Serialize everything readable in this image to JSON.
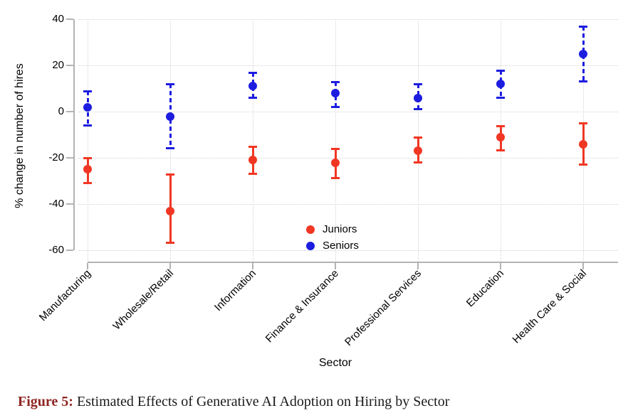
{
  "chart_data": {
    "type": "scatter",
    "title": "",
    "xlabel": "Sector",
    "ylabel": "% change in number of hires",
    "ylim": [
      -60,
      40
    ],
    "yticks": [
      40,
      20,
      0,
      -20,
      -40,
      -60
    ],
    "grid": "dotted, horizontal and vertical",
    "legend_position": "inside bottom-center",
    "categories": [
      "Manufacturing",
      "Wholesale/Retail",
      "Information",
      "Finance & Insurance",
      "Professional Services",
      "Education",
      "Health Care & Social"
    ],
    "series": [
      {
        "name": "Juniors",
        "color": "#f03723",
        "line_style": "solid",
        "values": [
          -25,
          -43,
          -21,
          -22,
          -17,
          -11,
          -14
        ],
        "ci_low": [
          -31,
          -57,
          -27,
          -29,
          -22,
          -17,
          -23
        ],
        "ci_high": [
          -20,
          -27,
          -15,
          -16,
          -11,
          -6,
          -5
        ]
      },
      {
        "name": "Seniors",
        "color": "#1d1de0",
        "line_style": "dashed",
        "values": [
          2,
          -2,
          11,
          8,
          6,
          12,
          25
        ],
        "ci_low": [
          -6,
          -16,
          6,
          2,
          1,
          6,
          13
        ],
        "ci_high": [
          9,
          12,
          17,
          13,
          12,
          18,
          37
        ]
      }
    ]
  },
  "caption": {
    "label": "Figure 5:",
    "text": " Estimated Effects of Generative AI Adoption on Hiring by Sector",
    "label_color": "#8e2622"
  }
}
